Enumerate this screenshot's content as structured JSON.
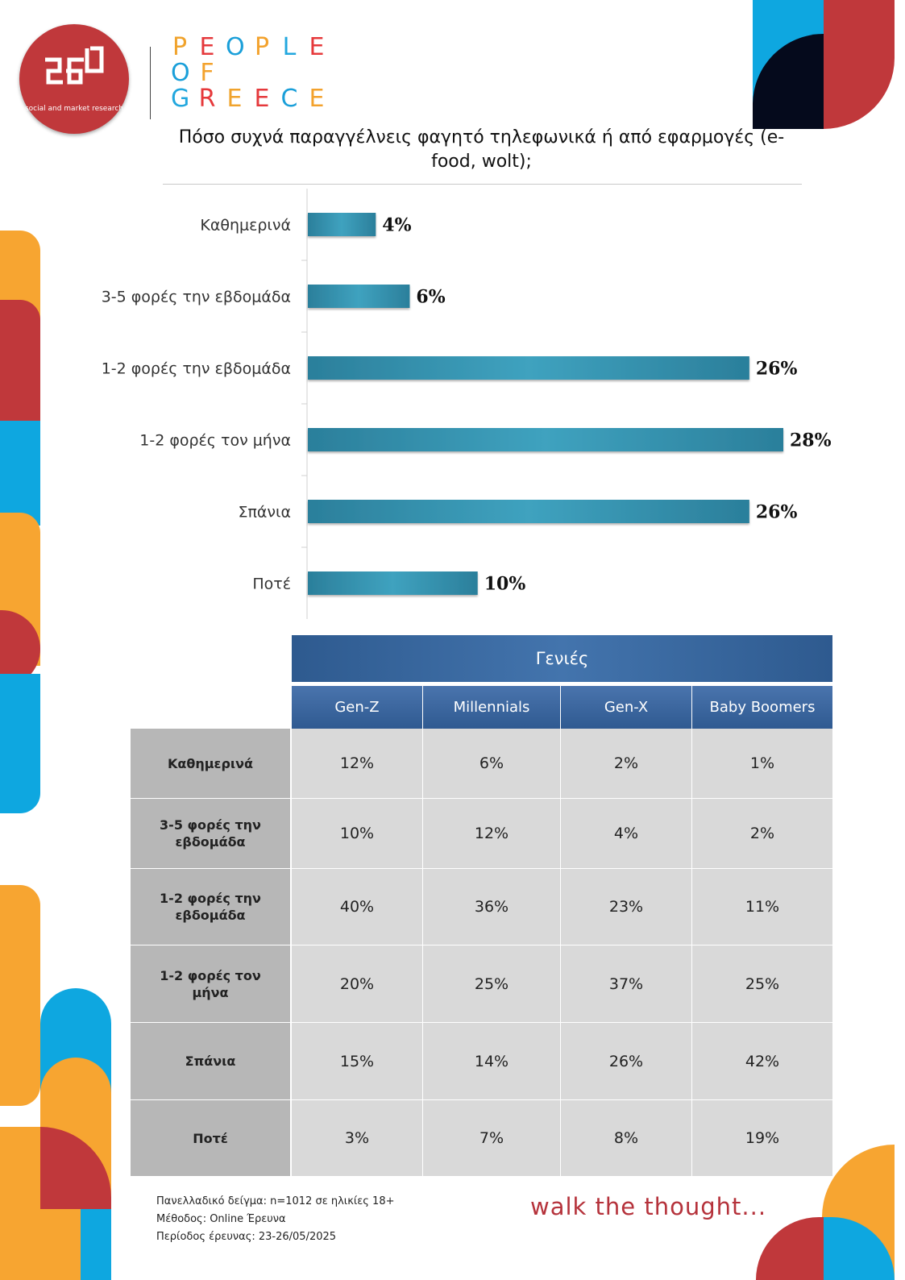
{
  "brand": {
    "logo_text": "social and market research",
    "wordmark_lines": [
      [
        "P",
        "E",
        "O",
        "P",
        "L",
        "E"
      ],
      [
        "O",
        "F"
      ],
      [
        "G",
        "R",
        "E",
        "E",
        "C",
        "E"
      ]
    ],
    "wordmark_colors": [
      "#f0a32d",
      "#e5393c",
      "#1a9fd9",
      "#f3a22d",
      "#22a7de",
      "#e6393b"
    ],
    "accent_red": "#c0383b",
    "accent_orange": "#f7a531",
    "accent_blue": "#0ea7e0",
    "accent_navy": "#050a1c"
  },
  "chart_data": {
    "type": "bar",
    "orientation": "horizontal",
    "title": "Πόσο συχνά παραγγέλνεις φαγητό τηλεφωνικά ή από εφαρμογές (e-food, wolt);",
    "categories": [
      "Καθημερινά",
      "3-5 φορές την εβδομάδα",
      "1-2 φορές την εβδομάδα",
      "1-2 φορές τον μήνα",
      "Σπάνια",
      "Ποτέ"
    ],
    "values": [
      4,
      6,
      26,
      28,
      26,
      10
    ],
    "value_labels": [
      "4%",
      "6%",
      "26%",
      "28%",
      "26%",
      "10%"
    ],
    "unit": "%",
    "xlim": [
      0,
      28
    ],
    "grid": false,
    "legend": "none",
    "bar_color": "#2f8aa6"
  },
  "table": {
    "group_header": "Γενιές",
    "columns": [
      "Gen-Z",
      "Millennials",
      "Gen-X",
      "Baby Boomers"
    ],
    "rows": [
      {
        "label": "Καθημερινά",
        "values": [
          "12%",
          "6%",
          "2%",
          "1%"
        ]
      },
      {
        "label": "3-5 φορές την εβδομάδα",
        "values": [
          "10%",
          "12%",
          "4%",
          "2%"
        ]
      },
      {
        "label": "1-2 φορές την εβδομάδα",
        "values": [
          "40%",
          "36%",
          "23%",
          "11%"
        ]
      },
      {
        "label": "1-2 φορές τον μήνα",
        "values": [
          "20%",
          "25%",
          "37%",
          "25%"
        ]
      },
      {
        "label": "Σπάνια",
        "values": [
          "15%",
          "14%",
          "26%",
          "42%"
        ]
      },
      {
        "label": "Ποτέ",
        "values": [
          "3%",
          "7%",
          "8%",
          "19%"
        ]
      }
    ]
  },
  "footer": {
    "sample": "Πανελλαδικό δείγμα: n=1012 σε ηλικίες 18+",
    "method": "Μέθοδος: Online Έρευνα",
    "period": "Περίοδος έρευνας:  23-26/05/2025",
    "tagline": "walk the thought..."
  }
}
